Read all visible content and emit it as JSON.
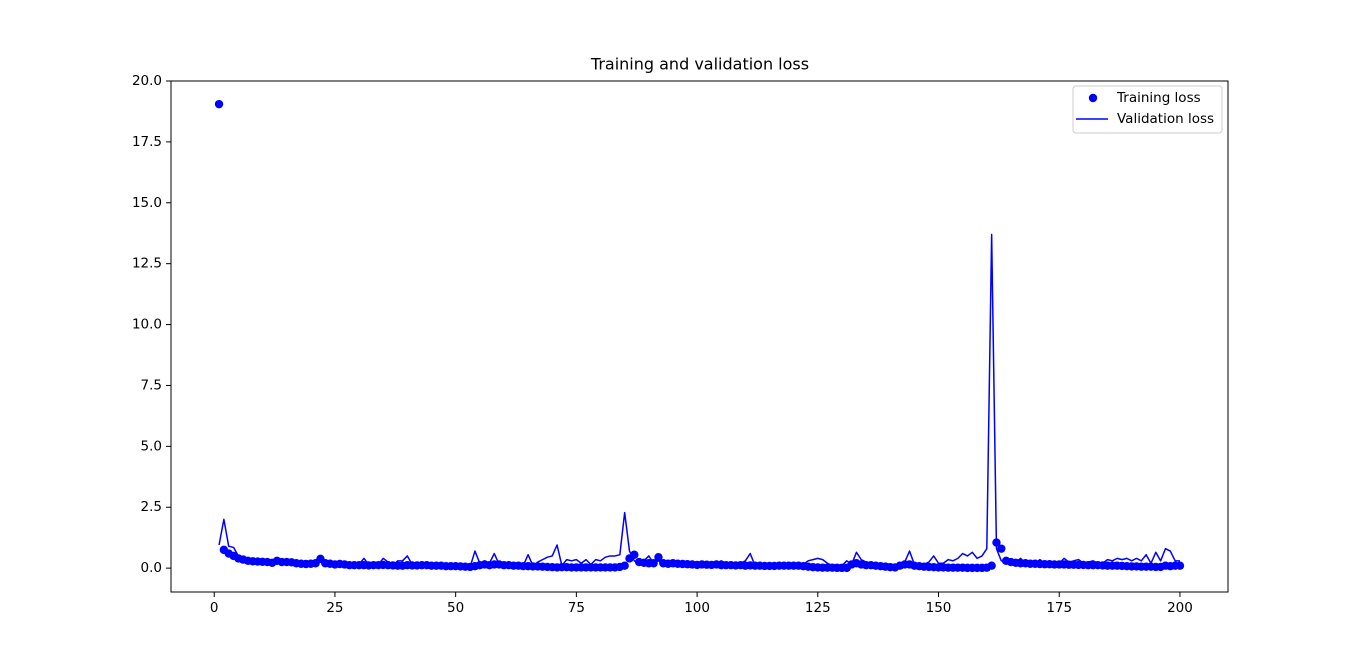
{
  "chart_data": {
    "type": "line",
    "title": "Training and validation loss",
    "x": [
      1,
      2,
      3,
      4,
      5,
      6,
      7,
      8,
      9,
      10,
      11,
      12,
      13,
      14,
      15,
      16,
      17,
      18,
      19,
      20,
      21,
      22,
      23,
      24,
      25,
      26,
      27,
      28,
      29,
      30,
      31,
      32,
      33,
      34,
      35,
      36,
      37,
      38,
      39,
      40,
      41,
      42,
      43,
      44,
      45,
      46,
      47,
      48,
      49,
      50,
      51,
      52,
      53,
      54,
      55,
      56,
      57,
      58,
      59,
      60,
      61,
      62,
      63,
      64,
      65,
      66,
      67,
      68,
      69,
      70,
      71,
      72,
      73,
      74,
      75,
      76,
      77,
      78,
      79,
      80,
      81,
      82,
      83,
      84,
      85,
      86,
      87,
      88,
      89,
      90,
      91,
      92,
      93,
      94,
      95,
      96,
      97,
      98,
      99,
      100,
      101,
      102,
      103,
      104,
      105,
      106,
      107,
      108,
      109,
      110,
      111,
      112,
      113,
      114,
      115,
      116,
      117,
      118,
      119,
      120,
      121,
      122,
      123,
      124,
      125,
      126,
      127,
      128,
      129,
      130,
      131,
      132,
      133,
      134,
      135,
      136,
      137,
      138,
      139,
      140,
      141,
      142,
      143,
      144,
      145,
      146,
      147,
      148,
      149,
      150,
      151,
      152,
      153,
      154,
      155,
      156,
      157,
      158,
      159,
      160,
      161,
      162,
      163,
      164,
      165,
      166,
      167,
      168,
      169,
      170,
      171,
      172,
      173,
      174,
      175,
      176,
      177,
      178,
      179,
      180,
      181,
      182,
      183,
      184,
      185,
      186,
      187,
      188,
      189,
      190,
      191,
      192,
      193,
      194,
      195,
      196,
      197,
      198,
      199,
      200
    ],
    "series": [
      {
        "name": "Training loss",
        "color": "#0000ff",
        "mode": "markers",
        "values": [
          19.05,
          0.75,
          0.6,
          0.5,
          0.4,
          0.35,
          0.3,
          0.28,
          0.27,
          0.26,
          0.25,
          0.22,
          0.3,
          0.25,
          0.25,
          0.24,
          0.2,
          0.18,
          0.17,
          0.18,
          0.2,
          0.38,
          0.2,
          0.18,
          0.15,
          0.17,
          0.15,
          0.12,
          0.12,
          0.12,
          0.12,
          0.11,
          0.12,
          0.12,
          0.13,
          0.12,
          0.11,
          0.1,
          0.1,
          0.12,
          0.11,
          0.11,
          0.12,
          0.12,
          0.1,
          0.1,
          0.1,
          0.08,
          0.08,
          0.08,
          0.07,
          0.06,
          0.05,
          0.08,
          0.12,
          0.15,
          0.12,
          0.15,
          0.15,
          0.12,
          0.12,
          0.1,
          0.1,
          0.08,
          0.08,
          0.07,
          0.07,
          0.06,
          0.05,
          0.04,
          0.03,
          0.04,
          0.04,
          0.03,
          0.03,
          0.03,
          0.03,
          0.03,
          0.03,
          0.03,
          0.03,
          0.03,
          0.03,
          0.05,
          0.1,
          0.4,
          0.55,
          0.25,
          0.22,
          0.2,
          0.2,
          0.45,
          0.2,
          0.18,
          0.2,
          0.18,
          0.17,
          0.16,
          0.15,
          0.13,
          0.15,
          0.14,
          0.13,
          0.15,
          0.12,
          0.12,
          0.12,
          0.11,
          0.12,
          0.1,
          0.11,
          0.1,
          0.1,
          0.09,
          0.09,
          0.09,
          0.1,
          0.1,
          0.1,
          0.1,
          0.1,
          0.08,
          0.06,
          0.04,
          0.03,
          0.02,
          0.02,
          0.02,
          0.01,
          0.01,
          0.01,
          0.15,
          0.2,
          0.15,
          0.12,
          0.12,
          0.1,
          0.08,
          0.06,
          0.04,
          0.03,
          0.1,
          0.15,
          0.15,
          0.1,
          0.08,
          0.06,
          0.05,
          0.04,
          0.03,
          0.03,
          0.02,
          0.02,
          0.02,
          0.02,
          0.01,
          0.01,
          0.01,
          0.01,
          0.02,
          0.1,
          1.05,
          0.8,
          0.3,
          0.25,
          0.22,
          0.2,
          0.2,
          0.18,
          0.18,
          0.17,
          0.16,
          0.16,
          0.15,
          0.15,
          0.15,
          0.14,
          0.14,
          0.13,
          0.13,
          0.12,
          0.12,
          0.12,
          0.11,
          0.1,
          0.1,
          0.1,
          0.09,
          0.08,
          0.07,
          0.07,
          0.06,
          0.06,
          0.06,
          0.05,
          0.05,
          0.1,
          0.08,
          0.1,
          0.1
        ]
      },
      {
        "name": "Validation loss",
        "color": "#0000ff",
        "mode": "line",
        "values": [
          0.95,
          2.0,
          0.9,
          0.85,
          0.5,
          0.35,
          0.3,
          0.25,
          0.3,
          0.25,
          0.3,
          0.25,
          0.2,
          0.35,
          0.3,
          0.25,
          0.2,
          0.2,
          0.15,
          0.2,
          0.25,
          0.3,
          0.15,
          0.15,
          0.2,
          0.15,
          0.15,
          0.15,
          0.15,
          0.15,
          0.4,
          0.15,
          0.1,
          0.15,
          0.4,
          0.25,
          0.1,
          0.3,
          0.3,
          0.5,
          0.15,
          0.15,
          0.15,
          0.2,
          0.15,
          0.2,
          0.1,
          0.1,
          0.15,
          0.1,
          0.1,
          0.15,
          0.05,
          0.7,
          0.2,
          0.3,
          0.2,
          0.6,
          0.15,
          0.15,
          0.15,
          0.15,
          0.1,
          0.1,
          0.55,
          0.1,
          0.25,
          0.35,
          0.45,
          0.5,
          0.95,
          0.1,
          0.35,
          0.3,
          0.35,
          0.2,
          0.35,
          0.15,
          0.35,
          0.3,
          0.45,
          0.5,
          0.5,
          0.55,
          2.28,
          0.7,
          0.3,
          0.2,
          0.3,
          0.5,
          0.2,
          0.3,
          0.15,
          0.15,
          0.25,
          0.2,
          0.2,
          0.15,
          0.2,
          0.15,
          0.15,
          0.2,
          0.15,
          0.2,
          0.3,
          0.2,
          0.15,
          0.2,
          0.2,
          0.3,
          0.6,
          0.1,
          0.15,
          0.1,
          0.15,
          0.1,
          0.15,
          0.1,
          0.15,
          0.15,
          0.2,
          0.15,
          0.3,
          0.35,
          0.4,
          0.35,
          0.2,
          0.1,
          0.15,
          0.1,
          0.3,
          0.15,
          0.65,
          0.35,
          0.25,
          0.2,
          0.15,
          0.15,
          0.2,
          0.15,
          0.1,
          0.15,
          0.25,
          0.7,
          0.15,
          0.2,
          0.15,
          0.25,
          0.5,
          0.2,
          0.2,
          0.35,
          0.3,
          0.4,
          0.6,
          0.5,
          0.65,
          0.4,
          0.5,
          0.8,
          13.7,
          0.8,
          0.3,
          0.25,
          0.3,
          0.25,
          0.4,
          0.2,
          0.25,
          0.2,
          0.35,
          0.2,
          0.25,
          0.2,
          0.2,
          0.4,
          0.25,
          0.3,
          0.35,
          0.2,
          0.25,
          0.3,
          0.2,
          0.2,
          0.35,
          0.3,
          0.4,
          0.35,
          0.4,
          0.3,
          0.4,
          0.3,
          0.55,
          0.2,
          0.65,
          0.3,
          0.8,
          0.7,
          0.3,
          0.3
        ]
      }
    ],
    "xlim": [
      -8.95,
      209.95
    ],
    "xticks": [
      0,
      25,
      50,
      75,
      100,
      125,
      150,
      175,
      200
    ],
    "ylim": [
      -0.98,
      20.0
    ],
    "yticks": [
      {
        "value": 0,
        "label": "0.0"
      },
      {
        "value": 2.5,
        "label": "2.5"
      },
      {
        "value": 5,
        "label": "5.0"
      },
      {
        "value": 7.5,
        "label": "7.5"
      },
      {
        "value": 10,
        "label": "10.0"
      },
      {
        "value": 12.5,
        "label": "12.5"
      },
      {
        "value": 15,
        "label": "15.0"
      },
      {
        "value": 17.5,
        "label": "17.5"
      },
      {
        "value": 20,
        "label": "20.0"
      }
    ],
    "legend": "upper right",
    "grid": false
  }
}
